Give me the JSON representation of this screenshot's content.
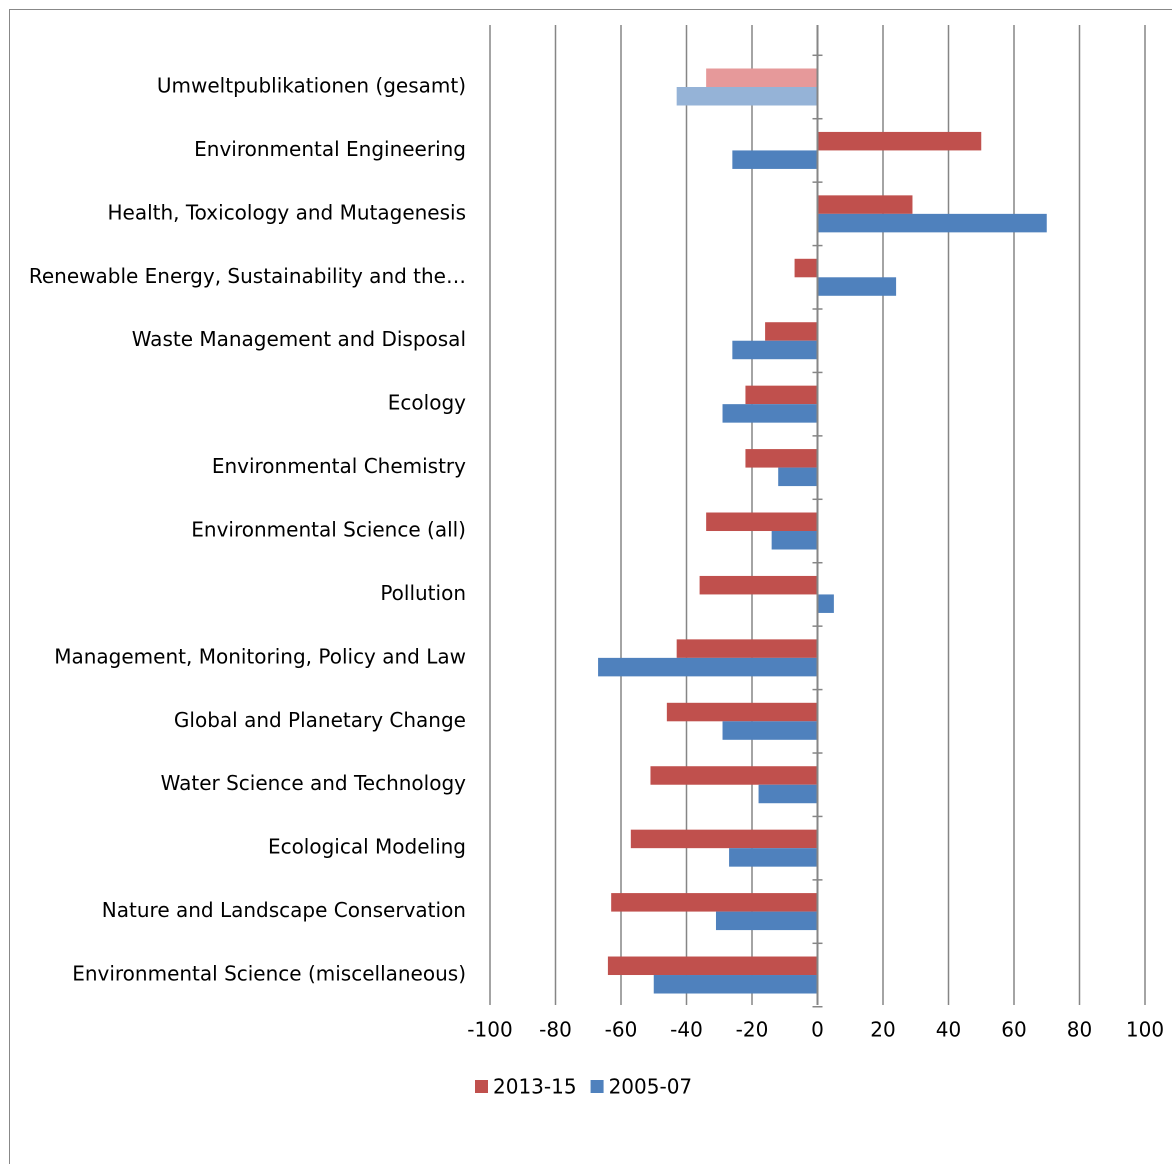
{
  "chart_data": {
    "type": "barh",
    "categories": [
      "Umweltpublikationen (gesamt)",
      "Environmental Engineering",
      "Health, Toxicology and Mutagenesis",
      "Renewable Energy, Sustainability and the…",
      "Waste Management and Disposal",
      "Ecology",
      "Environmental Chemistry",
      "Environmental Science (all)",
      "Pollution",
      "Management, Monitoring, Policy and Law",
      "Global and Planetary Change",
      "Water Science and Technology",
      "Ecological Modeling",
      "Nature and Landscape Conservation",
      "Environmental Science (miscellaneous)"
    ],
    "series": [
      {
        "name": "2013-15",
        "color": "#c0504d",
        "colors": [
          "#e6999a",
          "#c0504d",
          "#c0504d",
          "#c0504d",
          "#c0504d",
          "#c0504d",
          "#c0504d",
          "#c0504d",
          "#c0504d",
          "#c0504d",
          "#c0504d",
          "#c0504d",
          "#c0504d",
          "#c0504d",
          "#c0504d"
        ],
        "values": [
          -34,
          50,
          29,
          -7,
          -16,
          -22,
          -22,
          -34,
          -36,
          -43,
          -46,
          -51,
          -57,
          -63,
          -64
        ]
      },
      {
        "name": "2005-07",
        "color": "#4f81bd",
        "colors": [
          "#95b3d7",
          "#4f81bd",
          "#4f81bd",
          "#4f81bd",
          "#4f81bd",
          "#4f81bd",
          "#4f81bd",
          "#4f81bd",
          "#4f81bd",
          "#4f81bd",
          "#4f81bd",
          "#4f81bd",
          "#4f81bd",
          "#4f81bd",
          "#4f81bd"
        ],
        "values": [
          -43,
          -26,
          70,
          24,
          -26,
          -29,
          -12,
          -14,
          5,
          -67,
          -29,
          -18,
          -27,
          -31,
          -50
        ]
      }
    ],
    "xlim": [
      -100,
      100
    ],
    "xticks": [
      -100,
      -80,
      -60,
      -40,
      -20,
      0,
      20,
      40,
      60,
      80,
      100
    ],
    "grid": true,
    "legend": "bottom"
  }
}
